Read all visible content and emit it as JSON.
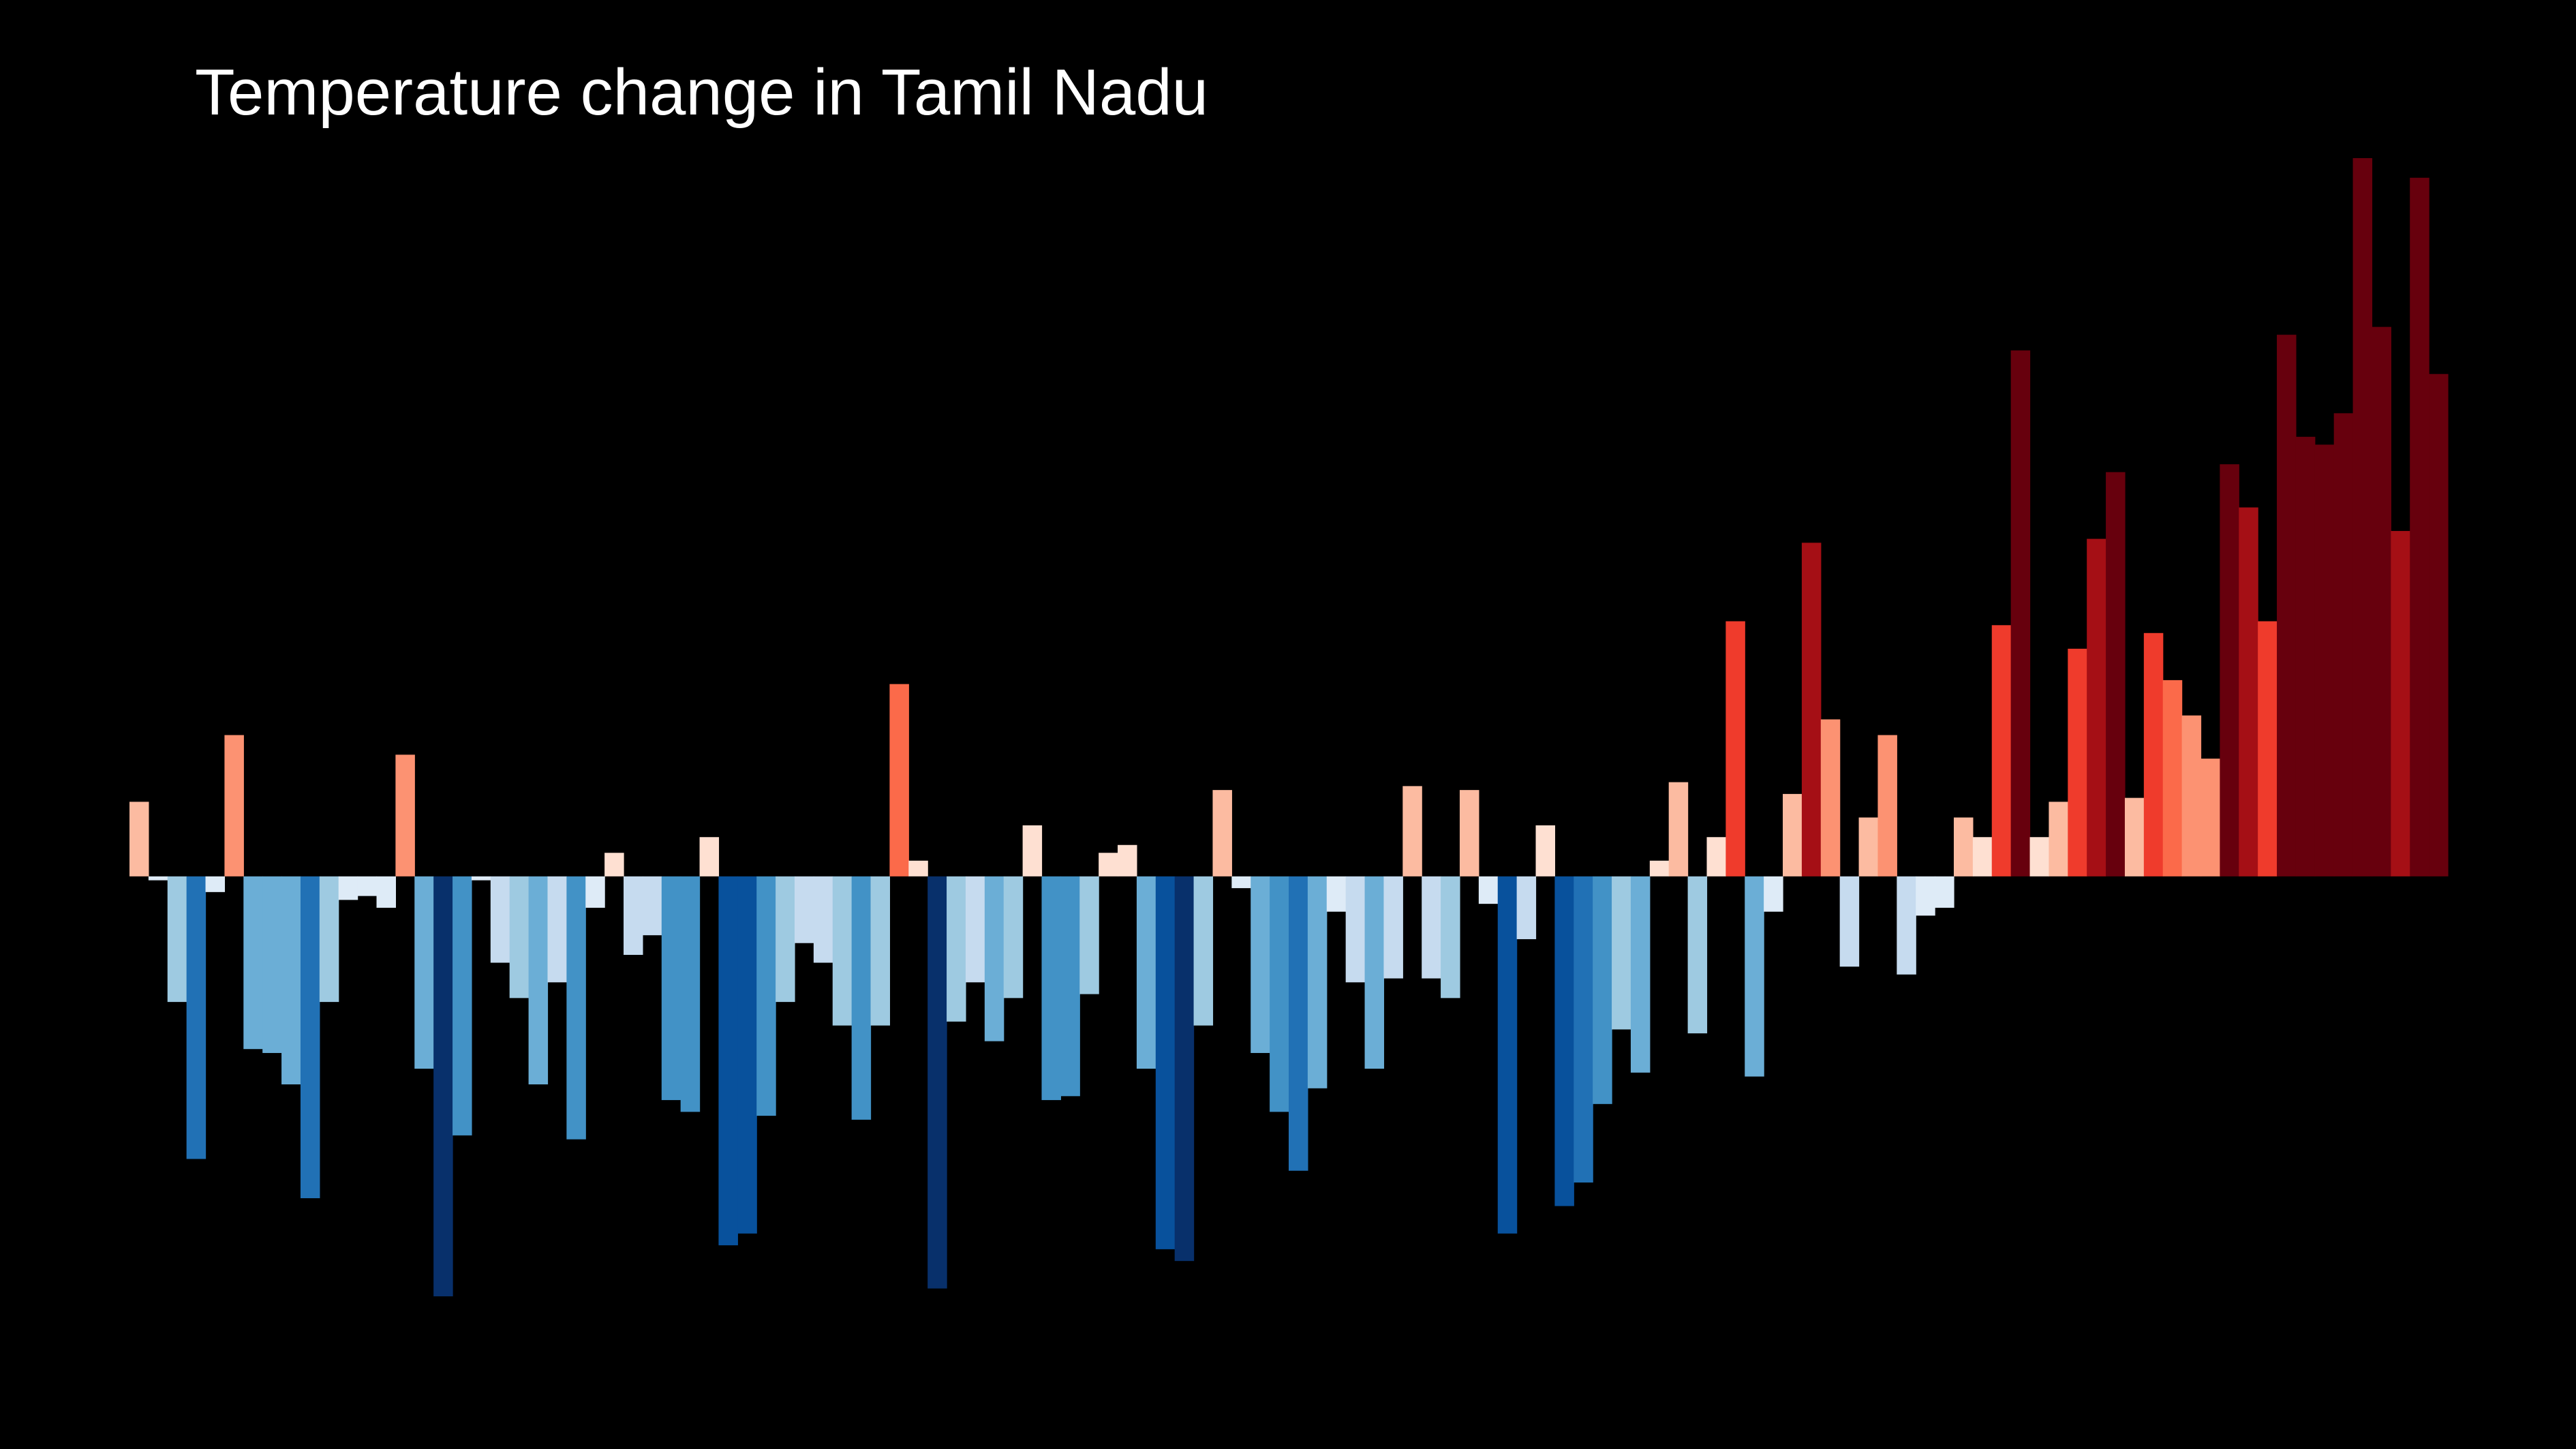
{
  "chart_data": {
    "type": "bar",
    "title": "Temperature change in Tamil Nadu",
    "xlabel": "",
    "ylabel": "",
    "grid": false,
    "legend": "none",
    "ylim": [
      -1.07,
      1.83
    ],
    "values": [
      0.19,
      -0.01,
      -0.32,
      -0.72,
      -0.04,
      0.36,
      -0.44,
      -0.45,
      -0.53,
      -0.82,
      -0.32,
      -0.06,
      -0.05,
      -0.08,
      0.31,
      -0.49,
      -1.07,
      -0.66,
      -0.01,
      -0.22,
      -0.31,
      -0.53,
      -0.27,
      -0.67,
      -0.08,
      0.06,
      -0.2,
      -0.15,
      -0.57,
      -0.6,
      0.1,
      -0.94,
      -0.91,
      -0.61,
      -0.32,
      -0.17,
      -0.22,
      -0.38,
      -0.62,
      -0.38,
      0.49,
      0.04,
      -1.05,
      -0.37,
      -0.27,
      -0.42,
      -0.31,
      0.13,
      -0.57,
      -0.56,
      -0.3,
      0.06,
      0.08,
      -0.49,
      -0.95,
      -0.98,
      -0.38,
      0.22,
      -0.03,
      -0.45,
      -0.6,
      -0.75,
      -0.54,
      -0.09,
      -0.27,
      -0.49,
      -0.26,
      0.23,
      -0.26,
      -0.31,
      0.22,
      -0.07,
      -0.91,
      -0.16,
      0.13,
      -0.84,
      -0.78,
      -0.58,
      -0.39,
      -0.5,
      0.04,
      0.24,
      -0.4,
      0.1,
      0.65,
      -0.51,
      -0.09,
      0.21,
      0.85,
      0.4,
      -0.23,
      0.15,
      0.36,
      -0.25,
      -0.1,
      -0.08,
      0.15,
      0.1,
      0.64,
      1.34,
      0.1,
      0.19,
      0.58,
      0.86,
      1.03,
      0.2,
      0.62,
      0.5,
      0.41,
      0.3,
      1.05,
      0.94,
      0.65,
      1.38,
      1.12,
      1.1,
      1.18,
      1.83,
      1.4,
      0.88,
      1.78,
      1.28
    ],
    "color_scale": [
      "#08306b",
      "#08519c",
      "#2171b5",
      "#4292c6",
      "#6baed6",
      "#9ecae1",
      "#c6dbef",
      "#deebf7",
      "#fee0d2",
      "#fcbba1",
      "#fc9272",
      "#fb6a4a",
      "#ef3b2c",
      "#cb181d",
      "#a50f15",
      "#67000d"
    ],
    "background_color": "#000000",
    "title_color": "#ffffff"
  }
}
